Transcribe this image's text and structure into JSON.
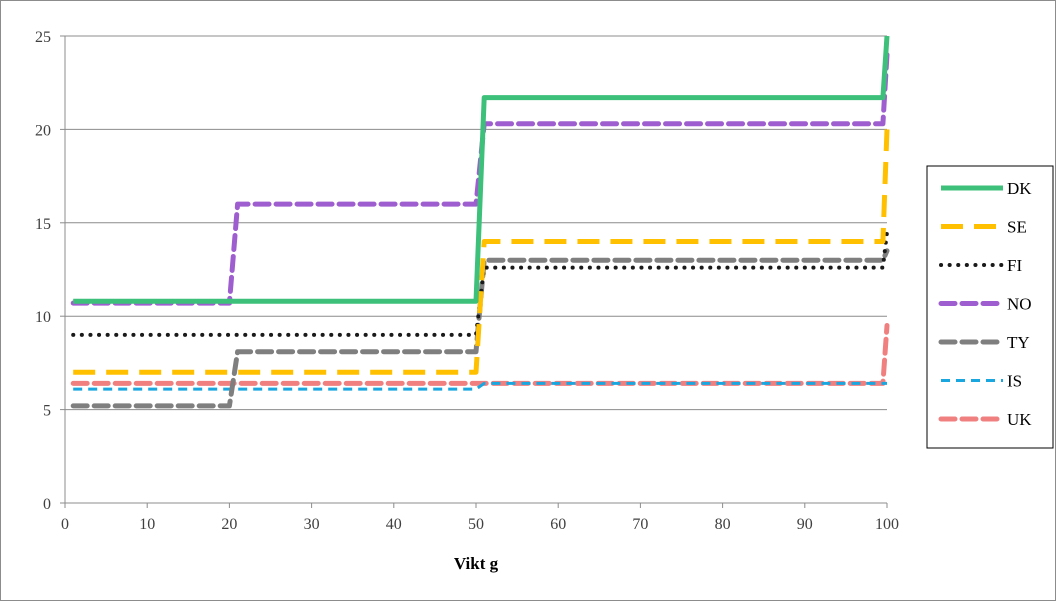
{
  "chart_data": {
    "type": "line",
    "title": "",
    "xlabel": "Vikt g",
    "ylabel": "",
    "xlim": [
      0,
      100
    ],
    "ylim": [
      0,
      25
    ],
    "xticks": [
      0,
      10,
      20,
      30,
      40,
      50,
      60,
      70,
      80,
      90,
      100
    ],
    "yticks": [
      0,
      5,
      10,
      15,
      20,
      25
    ],
    "grid": "horizontal",
    "legend_position": "right",
    "series": [
      {
        "name": "DK",
        "color": "#3cc07a",
        "style": "solid",
        "points": [
          [
            1,
            10.8
          ],
          [
            50,
            10.8
          ],
          [
            51,
            21.7
          ],
          [
            99.5,
            21.7
          ],
          [
            100,
            25
          ]
        ]
      },
      {
        "name": "SE",
        "color": "#ffc000",
        "style": "longdash",
        "points": [
          [
            1,
            7.0
          ],
          [
            50,
            7.0
          ],
          [
            51,
            14.0
          ],
          [
            99.5,
            14.0
          ],
          [
            100,
            20
          ]
        ]
      },
      {
        "name": "FI",
        "color": "#1a1a1a",
        "style": "dot",
        "points": [
          [
            1,
            9.0
          ],
          [
            50,
            9.0
          ],
          [
            51,
            12.6
          ],
          [
            99.5,
            12.6
          ],
          [
            100,
            14.5
          ]
        ]
      },
      {
        "name": "NO",
        "color": "#9e5ecf",
        "style": "dash",
        "points": [
          [
            1,
            10.7
          ],
          [
            20,
            10.7
          ],
          [
            21,
            16.0
          ],
          [
            50,
            16.0
          ],
          [
            51,
            20.3
          ],
          [
            99.5,
            20.3
          ],
          [
            100,
            24
          ]
        ]
      },
      {
        "name": "TY",
        "color": "#7f7f7f",
        "style": "dash",
        "points": [
          [
            1,
            5.2
          ],
          [
            20,
            5.2
          ],
          [
            21,
            8.1
          ],
          [
            50,
            8.1
          ],
          [
            51,
            13.0
          ],
          [
            99.5,
            13.0
          ],
          [
            100,
            13.5
          ]
        ]
      },
      {
        "name": "IS",
        "color": "#1aa7e0",
        "style": "shortdash",
        "points": [
          [
            1,
            6.1
          ],
          [
            50,
            6.1
          ],
          [
            51,
            6.4
          ],
          [
            100,
            6.4
          ]
        ]
      },
      {
        "name": "UK",
        "color": "#f08080",
        "style": "dash",
        "points": [
          [
            1,
            6.4
          ],
          [
            99.5,
            6.4
          ],
          [
            100,
            9.5
          ]
        ]
      }
    ]
  }
}
